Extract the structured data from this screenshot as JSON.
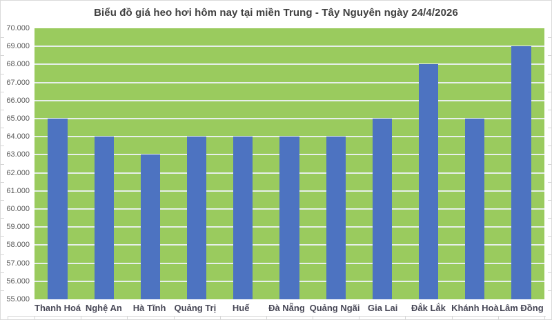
{
  "colors": {
    "plot_bg": "#9ACB5E",
    "bar": "#4D73C1",
    "gridline": "#E6EFEA",
    "title": "#404040",
    "ytick": "#595959",
    "xtick": "#474756",
    "axis": "#D5D5D5",
    "border": "#D9D9D9",
    "page": "#FFFFFF"
  },
  "chart_data": {
    "type": "bar",
    "title": "Biểu đồ giá heo hơi hôm nay tại miền Trung - Tây Nguyên ngày 24/4/2026",
    "categories": [
      "Thanh Hoá",
      "Nghệ An",
      "Hà Tĩnh",
      "Quảng Trị",
      "Huế",
      "Đà Nẵng",
      "Quảng Ngãi",
      "Gia Lai",
      "Đắk Lắk",
      "Khánh Hoà",
      "Lâm Đồng"
    ],
    "values": [
      65000,
      64000,
      63000,
      64000,
      64000,
      64000,
      64000,
      65000,
      68000,
      65000,
      69000
    ],
    "xlabel": "",
    "ylabel": "",
    "ylim": [
      55000,
      70000
    ],
    "ytick_step": 1000,
    "ytick_labels": [
      "70.000",
      "69.000",
      "68.000",
      "67.000",
      "66.000",
      "65.000",
      "64.000",
      "63.000",
      "62.000",
      "61.000",
      "60.000",
      "59.000",
      "58.000",
      "57.000",
      "56.000",
      "55.000"
    ],
    "grid": "horizontal-white",
    "legend": "none"
  }
}
